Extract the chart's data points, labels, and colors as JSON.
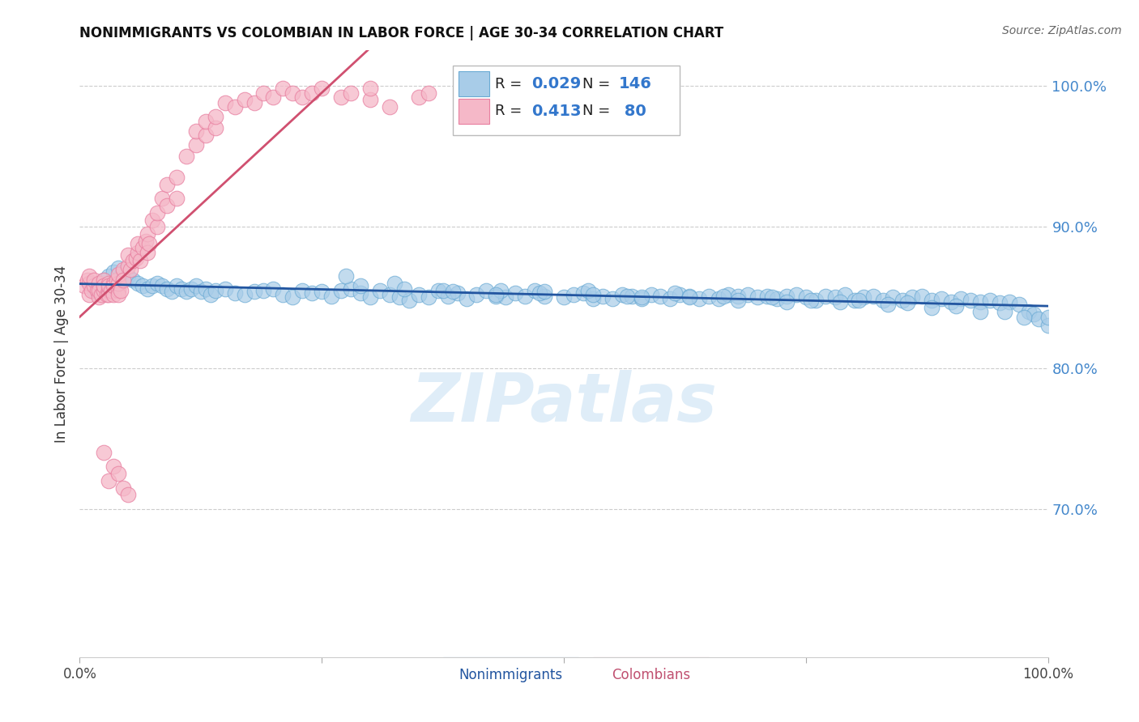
{
  "title": "NONIMMIGRANTS VS COLOMBIAN IN LABOR FORCE | AGE 30-34 CORRELATION CHART",
  "source": "Source: ZipAtlas.com",
  "ylabel": "In Labor Force | Age 30-34",
  "xlim": [
    0.0,
    1.0
  ],
  "ylim": [
    0.595,
    1.025
  ],
  "yticks": [
    0.7,
    0.8,
    0.9,
    1.0
  ],
  "ytick_labels": [
    "70.0%",
    "80.0%",
    "90.0%",
    "100.0%"
  ],
  "xticks": [
    0.0,
    0.25,
    0.5,
    0.75,
    1.0
  ],
  "xtick_labels": [
    "0.0%",
    "",
    "",
    "",
    "100.0%"
  ],
  "watermark": "ZIPatlas",
  "legend_r_nonimm": "0.029",
  "legend_n_nonimm": "146",
  "legend_r_colom": "0.413",
  "legend_n_colom": "80",
  "nonimm_color": "#a8cce8",
  "nonimm_edge": "#6aaad4",
  "colom_color": "#f5b8c8",
  "colom_edge": "#e87fa0",
  "trend_blue": "#2255a0",
  "trend_pink": "#d05070",
  "background": "#ffffff",
  "grid_color": "#cccccc",
  "nonimm_x": [
    0.015,
    0.02,
    0.025,
    0.03,
    0.035,
    0.04,
    0.045,
    0.05,
    0.055,
    0.06,
    0.065,
    0.07,
    0.075,
    0.08,
    0.085,
    0.09,
    0.095,
    0.1,
    0.105,
    0.11,
    0.115,
    0.12,
    0.125,
    0.13,
    0.135,
    0.14,
    0.15,
    0.16,
    0.17,
    0.18,
    0.19,
    0.2,
    0.21,
    0.22,
    0.23,
    0.24,
    0.25,
    0.26,
    0.27,
    0.28,
    0.29,
    0.3,
    0.31,
    0.32,
    0.33,
    0.34,
    0.35,
    0.36,
    0.37,
    0.38,
    0.39,
    0.4,
    0.41,
    0.42,
    0.43,
    0.44,
    0.45,
    0.46,
    0.47,
    0.48,
    0.5,
    0.51,
    0.52,
    0.53,
    0.54,
    0.55,
    0.56,
    0.57,
    0.58,
    0.59,
    0.6,
    0.61,
    0.62,
    0.63,
    0.64,
    0.65,
    0.66,
    0.67,
    0.68,
    0.69,
    0.7,
    0.71,
    0.72,
    0.73,
    0.74,
    0.75,
    0.76,
    0.77,
    0.78,
    0.79,
    0.8,
    0.81,
    0.82,
    0.83,
    0.84,
    0.85,
    0.86,
    0.87,
    0.88,
    0.89,
    0.9,
    0.91,
    0.92,
    0.93,
    0.94,
    0.95,
    0.96,
    0.97,
    0.98,
    0.985,
    0.99,
    1.0,
    0.275,
    0.325,
    0.375,
    0.435,
    0.475,
    0.525,
    0.565,
    0.615,
    0.665,
    0.715,
    0.755,
    0.805,
    0.855,
    0.905,
    0.955,
    1.0,
    0.29,
    0.335,
    0.385,
    0.43,
    0.48,
    0.53,
    0.58,
    0.63,
    0.68,
    0.73,
    0.785,
    0.835,
    0.88,
    0.93,
    0.975
  ],
  "nonimm_y": [
    0.855,
    0.858,
    0.862,
    0.865,
    0.868,
    0.871,
    0.868,
    0.865,
    0.862,
    0.86,
    0.858,
    0.856,
    0.858,
    0.86,
    0.858,
    0.856,
    0.854,
    0.858,
    0.856,
    0.854,
    0.856,
    0.858,
    0.854,
    0.856,
    0.852,
    0.855,
    0.856,
    0.853,
    0.852,
    0.854,
    0.855,
    0.856,
    0.852,
    0.85,
    0.855,
    0.853,
    0.854,
    0.851,
    0.855,
    0.856,
    0.853,
    0.85,
    0.855,
    0.852,
    0.85,
    0.848,
    0.852,
    0.85,
    0.855,
    0.851,
    0.853,
    0.849,
    0.852,
    0.855,
    0.851,
    0.85,
    0.853,
    0.851,
    0.855,
    0.851,
    0.85,
    0.852,
    0.853,
    0.849,
    0.851,
    0.849,
    0.852,
    0.851,
    0.849,
    0.852,
    0.851,
    0.849,
    0.852,
    0.851,
    0.849,
    0.851,
    0.849,
    0.852,
    0.851,
    0.852,
    0.85,
    0.851,
    0.849,
    0.851,
    0.852,
    0.85,
    0.848,
    0.851,
    0.85,
    0.852,
    0.848,
    0.85,
    0.851,
    0.848,
    0.85,
    0.848,
    0.85,
    0.851,
    0.848,
    0.849,
    0.847,
    0.849,
    0.848,
    0.847,
    0.848,
    0.846,
    0.847,
    0.845,
    0.84,
    0.838,
    0.835,
    0.83,
    0.865,
    0.86,
    0.855,
    0.855,
    0.853,
    0.855,
    0.851,
    0.853,
    0.851,
    0.85,
    0.848,
    0.848,
    0.846,
    0.844,
    0.84,
    0.836,
    0.858,
    0.856,
    0.854,
    0.852,
    0.854,
    0.852,
    0.85,
    0.85,
    0.848,
    0.847,
    0.847,
    0.845,
    0.843,
    0.84,
    0.836
  ],
  "colom_x": [
    0.005,
    0.008,
    0.01,
    0.01,
    0.01,
    0.012,
    0.015,
    0.015,
    0.018,
    0.02,
    0.02,
    0.02,
    0.022,
    0.025,
    0.025,
    0.025,
    0.025,
    0.028,
    0.03,
    0.03,
    0.03,
    0.03,
    0.032,
    0.035,
    0.035,
    0.035,
    0.038,
    0.04,
    0.04,
    0.04,
    0.04,
    0.042,
    0.045,
    0.045,
    0.05,
    0.05,
    0.052,
    0.055,
    0.058,
    0.06,
    0.06,
    0.062,
    0.065,
    0.068,
    0.07,
    0.07,
    0.072,
    0.075,
    0.08,
    0.08,
    0.085,
    0.09,
    0.09,
    0.1,
    0.1,
    0.11,
    0.12,
    0.12,
    0.13,
    0.13,
    0.14,
    0.14,
    0.15,
    0.16,
    0.17,
    0.18,
    0.19,
    0.2,
    0.21,
    0.22,
    0.23,
    0.24,
    0.25,
    0.27,
    0.28,
    0.3,
    0.3,
    0.32,
    0.35,
    0.36
  ],
  "colom_y": [
    0.858,
    0.862,
    0.852,
    0.86,
    0.865,
    0.855,
    0.858,
    0.862,
    0.855,
    0.85,
    0.86,
    0.855,
    0.852,
    0.858,
    0.862,
    0.855,
    0.858,
    0.852,
    0.855,
    0.86,
    0.852,
    0.858,
    0.855,
    0.86,
    0.852,
    0.858,
    0.862,
    0.855,
    0.852,
    0.86,
    0.866,
    0.855,
    0.87,
    0.862,
    0.872,
    0.88,
    0.87,
    0.876,
    0.878,
    0.882,
    0.888,
    0.876,
    0.885,
    0.89,
    0.895,
    0.882,
    0.888,
    0.905,
    0.9,
    0.91,
    0.92,
    0.915,
    0.93,
    0.92,
    0.935,
    0.95,
    0.958,
    0.968,
    0.965,
    0.975,
    0.97,
    0.978,
    0.988,
    0.985,
    0.99,
    0.988,
    0.995,
    0.992,
    0.998,
    0.995,
    0.992,
    0.995,
    0.998,
    0.992,
    0.995,
    0.99,
    0.998,
    0.985,
    0.992,
    0.995
  ],
  "colom_outlier_x": [
    0.025,
    0.03,
    0.035,
    0.04,
    0.045,
    0.05
  ],
  "colom_outlier_y": [
    0.74,
    0.72,
    0.73,
    0.725,
    0.715,
    0.71
  ]
}
